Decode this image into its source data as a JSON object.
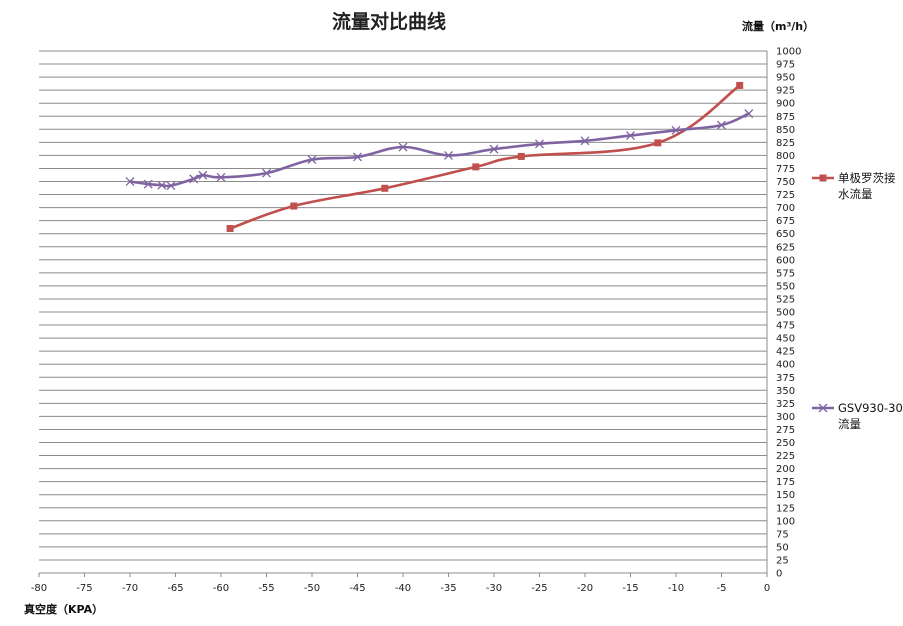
{
  "chart_data": {
    "type": "line",
    "title": "流量对比曲线",
    "xlabel": "真空度（KPA）",
    "ylabel": "流量（m³/h）",
    "xlim": [
      -80,
      0
    ],
    "ylim": [
      0,
      1000
    ],
    "x_ticks": [
      -80,
      -75,
      -70,
      -65,
      -60,
      -55,
      -50,
      -45,
      -40,
      -35,
      -30,
      -25,
      -20,
      -15,
      -10,
      -5,
      0
    ],
    "y_tick_step": 25,
    "grid": "horizontal",
    "legend_position": "right",
    "series": [
      {
        "name": "单极罗茨接水流量",
        "color": "#c0504d",
        "marker": "square",
        "x": [
          -59,
          -52,
          -42,
          -32,
          -27,
          -12,
          -3
        ],
        "y": [
          660,
          703,
          737,
          778,
          798,
          824,
          934
        ]
      },
      {
        "name": "GSV930-30流量",
        "color": "#8064a2",
        "marker": "x",
        "x": [
          -70,
          -68,
          -66.5,
          -65.5,
          -63,
          -62,
          -60,
          -55,
          -50,
          -45,
          -40,
          -35,
          -30,
          -25,
          -20,
          -15,
          -10,
          -5,
          -2
        ],
        "y": [
          750,
          745,
          743,
          742,
          755,
          762,
          758,
          766,
          792,
          797,
          816,
          800,
          812,
          822,
          828,
          838,
          848,
          858,
          880
        ]
      }
    ]
  }
}
